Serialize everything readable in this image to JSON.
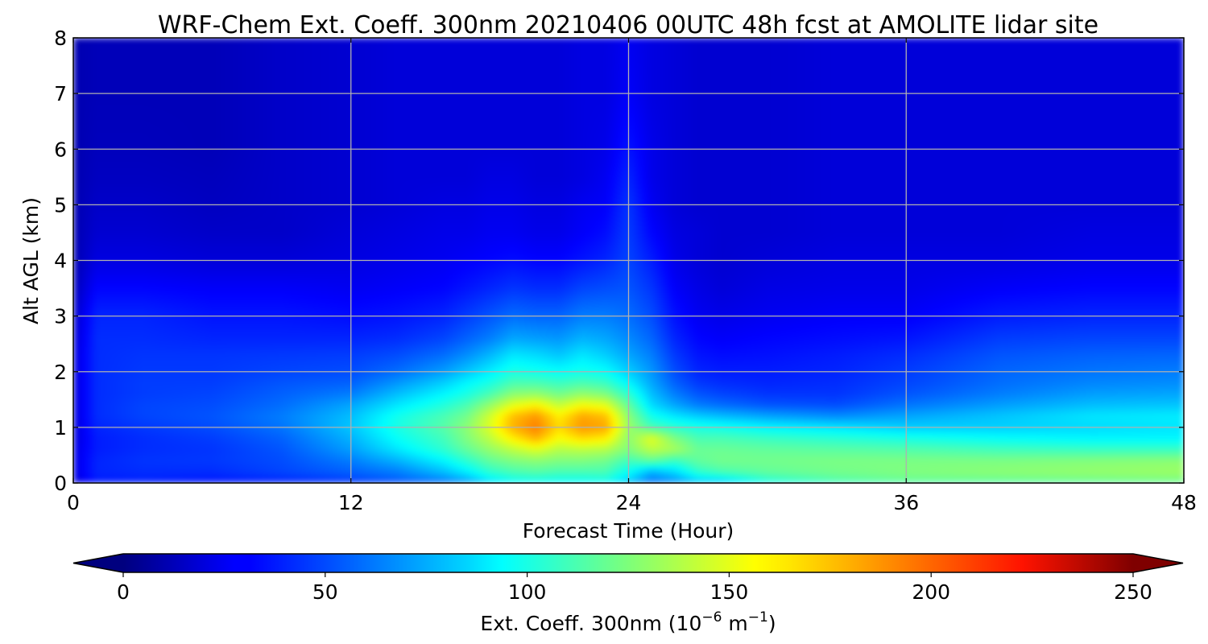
{
  "chart_data": {
    "type": "heatmap",
    "title": "WRF-Chem Ext. Coeff. 300nm  20210406 00UTC 48h fcst at AMOLITE lidar site",
    "xlabel": "Forecast Time (Hour)",
    "ylabel": "Alt AGL (km)",
    "xlim": [
      0,
      48
    ],
    "ylim": [
      0,
      8
    ],
    "xticks": [
      "0",
      "12",
      "24",
      "36",
      "48"
    ],
    "yticks": [
      "0",
      "1",
      "2",
      "3",
      "4",
      "5",
      "6",
      "7",
      "8"
    ],
    "grid": true,
    "colorbar": {
      "label_main": "Ext. Coeff. 300nm  (10",
      "label_exp1": "−6",
      "label_mid": " m",
      "label_exp2": "−1",
      "label_end": ")",
      "range": [
        0,
        250
      ],
      "extend": "both",
      "colormap": "jet",
      "ticks": [
        "0",
        "50",
        "100",
        "150",
        "200",
        "250"
      ]
    },
    "times_hours": [
      0,
      1,
      3,
      6,
      9,
      12,
      14,
      16,
      17,
      18,
      19,
      20,
      21,
      22,
      23,
      24,
      25,
      26,
      27,
      28,
      30,
      33,
      36,
      40,
      44,
      48
    ],
    "altitudes_km": [
      0,
      0.05,
      0.2,
      0.4,
      0.6,
      0.8,
      1.0,
      1.2,
      1.4,
      1.6,
      1.8,
      2.0,
      2.3,
      2.6,
      3.0,
      3.5,
      4.0,
      4.5,
      5.0,
      5.5,
      6.0,
      7.0,
      8.0
    ],
    "values": [
      [
        20,
        35,
        35,
        32,
        35,
        38,
        42,
        50,
        62,
        80,
        88,
        92,
        90,
        90,
        90,
        70,
        55,
        65,
        75,
        72,
        92,
        102,
        108,
        110,
        112,
        115
      ],
      [
        22,
        38,
        40,
        38,
        42,
        48,
        55,
        65,
        75,
        90,
        98,
        100,
        98,
        98,
        100,
        85,
        62,
        70,
        85,
        88,
        105,
        115,
        120,
        120,
        122,
        124
      ],
      [
        24,
        40,
        42,
        42,
        48,
        55,
        62,
        78,
        90,
        105,
        112,
        115,
        112,
        112,
        112,
        95,
        75,
        85,
        105,
        112,
        118,
        122,
        125,
        128,
        130,
        132
      ],
      [
        24,
        40,
        44,
        45,
        50,
        62,
        75,
        92,
        105,
        118,
        125,
        128,
        125,
        125,
        122,
        110,
        118,
        108,
        118,
        122,
        122,
        124,
        124,
        124,
        126,
        128
      ],
      [
        24,
        38,
        42,
        44,
        52,
        70,
        88,
        105,
        118,
        130,
        140,
        148,
        138,
        140,
        138,
        125,
        140,
        135,
        120,
        120,
        118,
        116,
        114,
        110,
        108,
        108
      ],
      [
        22,
        38,
        42,
        46,
        55,
        75,
        95,
        110,
        125,
        140,
        160,
        175,
        155,
        165,
        160,
        128,
        150,
        125,
        112,
        112,
        108,
        104,
        100,
        95,
        92,
        92
      ],
      [
        22,
        40,
        45,
        50,
        60,
        80,
        100,
        115,
        128,
        148,
        175,
        188,
        165,
        182,
        178,
        132,
        112,
        105,
        100,
        98,
        92,
        88,
        82,
        82,
        85,
        88
      ],
      [
        22,
        42,
        48,
        52,
        62,
        78,
        98,
        112,
        122,
        145,
        172,
        182,
        160,
        178,
        172,
        128,
        98,
        88,
        82,
        78,
        72,
        66,
        72,
        80,
        88,
        90
      ],
      [
        22,
        42,
        48,
        50,
        58,
        72,
        88,
        102,
        112,
        130,
        150,
        158,
        142,
        155,
        150,
        118,
        85,
        72,
        62,
        58,
        52,
        50,
        60,
        70,
        78,
        80
      ],
      [
        22,
        42,
        46,
        48,
        55,
        62,
        78,
        92,
        100,
        112,
        128,
        130,
        122,
        130,
        125,
        105,
        78,
        62,
        52,
        48,
        44,
        44,
        52,
        62,
        70,
        72
      ],
      [
        22,
        42,
        46,
        46,
        52,
        55,
        68,
        82,
        92,
        100,
        112,
        112,
        108,
        112,
        108,
        92,
        72,
        55,
        45,
        42,
        40,
        42,
        48,
        58,
        64,
        66
      ],
      [
        22,
        42,
        45,
        45,
        48,
        50,
        58,
        70,
        80,
        90,
        100,
        98,
        95,
        98,
        95,
        82,
        68,
        50,
        40,
        38,
        38,
        40,
        46,
        56,
        60,
        62
      ],
      [
        22,
        42,
        44,
        44,
        45,
        46,
        50,
        58,
        66,
        76,
        88,
        85,
        80,
        88,
        82,
        72,
        62,
        45,
        36,
        34,
        35,
        38,
        42,
        52,
        55,
        56
      ],
      [
        20,
        42,
        42,
        40,
        40,
        40,
        42,
        48,
        55,
        62,
        72,
        70,
        68,
        75,
        72,
        65,
        56,
        40,
        32,
        30,
        32,
        34,
        36,
        46,
        48,
        48
      ],
      [
        18,
        40,
        40,
        36,
        36,
        34,
        36,
        40,
        46,
        52,
        58,
        56,
        56,
        62,
        62,
        58,
        50,
        35,
        28,
        26,
        28,
        30,
        30,
        38,
        40,
        40
      ],
      [
        14,
        32,
        32,
        30,
        30,
        28,
        30,
        32,
        36,
        40,
        44,
        42,
        42,
        48,
        50,
        52,
        44,
        30,
        25,
        22,
        25,
        26,
        26,
        30,
        32,
        32
      ],
      [
        12,
        24,
        24,
        22,
        22,
        24,
        26,
        28,
        30,
        32,
        34,
        32,
        32,
        36,
        40,
        48,
        38,
        26,
        22,
        20,
        22,
        24,
        24,
        24,
        26,
        26
      ],
      [
        12,
        20,
        20,
        18,
        18,
        22,
        24,
        26,
        26,
        28,
        28,
        26,
        26,
        30,
        34,
        46,
        32,
        24,
        22,
        20,
        20,
        22,
        22,
        22,
        24,
        24
      ],
      [
        12,
        18,
        18,
        16,
        18,
        20,
        22,
        24,
        24,
        26,
        26,
        24,
        24,
        28,
        30,
        44,
        28,
        22,
        20,
        20,
        20,
        22,
        22,
        22,
        22,
        22
      ],
      [
        12,
        16,
        16,
        15,
        18,
        20,
        22,
        22,
        22,
        24,
        24,
        22,
        22,
        24,
        28,
        40,
        26,
        22,
        20,
        20,
        20,
        22,
        22,
        22,
        22,
        22
      ],
      [
        12,
        15,
        15,
        14,
        18,
        20,
        22,
        22,
        22,
        22,
        22,
        22,
        22,
        24,
        26,
        36,
        26,
        22,
        20,
        20,
        20,
        22,
        22,
        22,
        22,
        22
      ],
      [
        12,
        14,
        14,
        14,
        18,
        20,
        22,
        22,
        22,
        22,
        22,
        22,
        22,
        24,
        24,
        30,
        24,
        22,
        20,
        20,
        20,
        22,
        22,
        22,
        22,
        22
      ],
      [
        12,
        14,
        14,
        14,
        18,
        20,
        22,
        22,
        22,
        22,
        22,
        22,
        22,
        24,
        24,
        28,
        24,
        22,
        20,
        20,
        20,
        22,
        22,
        22,
        22,
        22
      ]
    ]
  }
}
